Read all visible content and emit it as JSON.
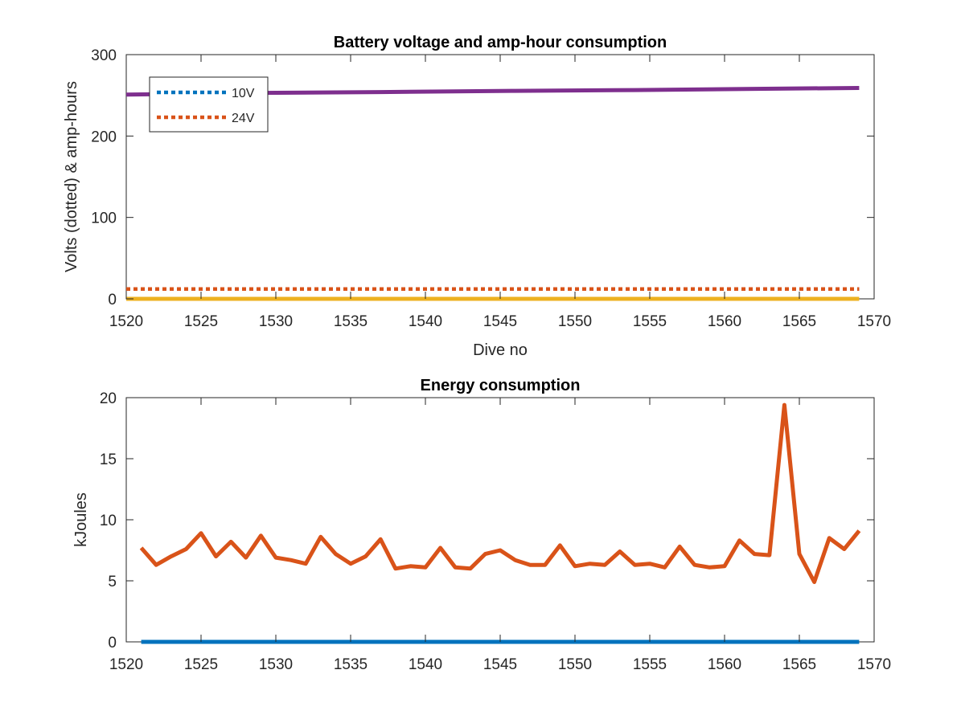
{
  "chart_data": [
    {
      "type": "line",
      "title": "Battery voltage and amp-hour consumption",
      "xlabel": "Dive no",
      "ylabel": "Volts (dotted) & amp-hours",
      "xlim": [
        1520,
        1570
      ],
      "ylim": [
        0,
        300
      ],
      "xticks": [
        "1520",
        "1525",
        "1530",
        "1535",
        "1540",
        "1545",
        "1550",
        "1555",
        "1560",
        "1565",
        "1570"
      ],
      "yticks": [
        "0",
        "100",
        "200",
        "300"
      ],
      "grid": false,
      "legend_position": "top-left",
      "series": [
        {
          "name": "10V",
          "style": "dotted",
          "color": "#0072BD",
          "x": [
            1520,
            1569
          ],
          "y": [
            12,
            12
          ],
          "in_legend": true
        },
        {
          "name": "24V",
          "style": "dotted",
          "color": "#D95319",
          "x": [
            1520,
            1569
          ],
          "y": [
            12,
            12
          ],
          "in_legend": true
        },
        {
          "style": "solid",
          "color": "#7E2F8E",
          "x": [
            1520,
            1529,
            1537,
            1546,
            1554,
            1562,
            1569
          ],
          "y": [
            251,
            253,
            254,
            255.5,
            256.5,
            258,
            259
          ],
          "in_legend": false
        },
        {
          "style": "solid",
          "color": "#EDB120",
          "x": [
            1520,
            1569
          ],
          "y": [
            0,
            0
          ],
          "in_legend": false
        }
      ]
    },
    {
      "type": "line",
      "title": "Energy consumption",
      "xlabel": "",
      "ylabel": "kJoules",
      "xlim": [
        1520,
        1570
      ],
      "ylim": [
        0,
        20
      ],
      "xticks": [
        "1520",
        "1525",
        "1530",
        "1535",
        "1540",
        "1545",
        "1550",
        "1555",
        "1560",
        "1565",
        "1570"
      ],
      "yticks": [
        "0",
        "5",
        "10",
        "15",
        "20"
      ],
      "grid": false,
      "series": [
        {
          "style": "solid",
          "color": "#0072BD",
          "x": [
            1521,
            1569
          ],
          "y": [
            0,
            0
          ]
        },
        {
          "style": "solid",
          "color": "#D95319",
          "x": [
            1521,
            1522,
            1523,
            1524,
            1525,
            1526,
            1527,
            1528,
            1529,
            1530,
            1531,
            1532,
            1533,
            1534,
            1535,
            1536,
            1537,
            1538,
            1539,
            1540,
            1541,
            1542,
            1543,
            1544,
            1545,
            1546,
            1547,
            1548,
            1549,
            1550,
            1551,
            1552,
            1553,
            1554,
            1555,
            1556,
            1557,
            1558,
            1559,
            1560,
            1561,
            1562,
            1563,
            1564,
            1565,
            1566,
            1567,
            1568,
            1569
          ],
          "y": [
            7.7,
            6.3,
            7.0,
            7.6,
            8.9,
            7.0,
            8.2,
            6.9,
            8.7,
            6.9,
            6.7,
            6.4,
            8.6,
            7.2,
            6.4,
            7.0,
            8.4,
            6.0,
            6.2,
            6.1,
            7.7,
            6.1,
            6.0,
            7.2,
            7.5,
            6.7,
            6.3,
            6.3,
            7.9,
            6.2,
            6.4,
            6.3,
            7.4,
            6.3,
            6.4,
            6.1,
            7.8,
            6.3,
            6.1,
            6.2,
            8.3,
            7.2,
            7.1,
            19.4,
            7.2,
            4.9,
            8.5,
            7.6,
            9.1
          ]
        }
      ]
    }
  ]
}
